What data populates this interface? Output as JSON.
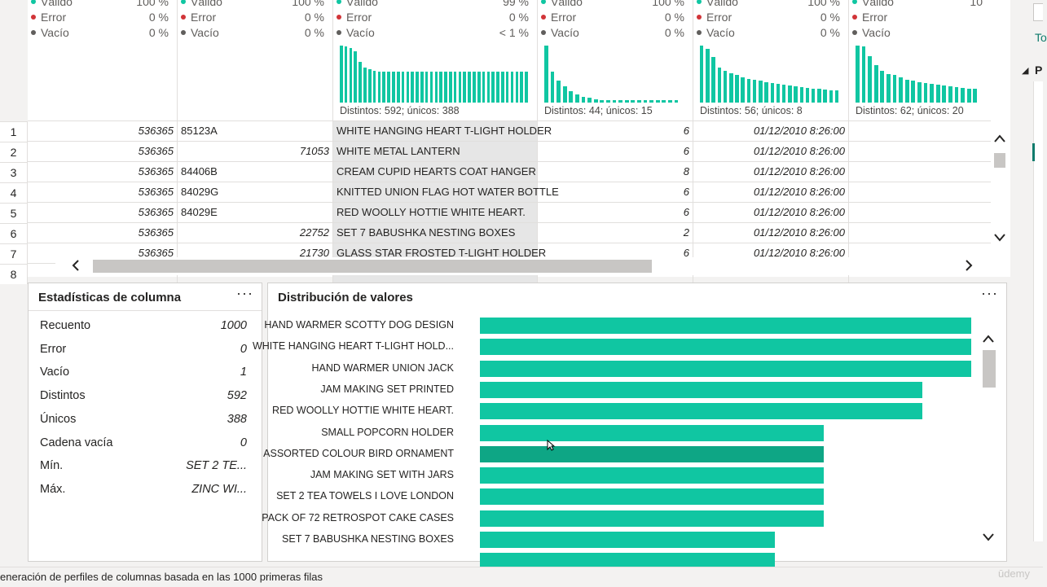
{
  "columns": [
    {
      "valid_label": "Válido",
      "valid_pct": "100 %",
      "error_label": "Error",
      "error_pct": "0 %",
      "empty_label": "Vacío",
      "empty_pct": "0 %",
      "distinct": ""
    },
    {
      "valid_label": "Válido",
      "valid_pct": "100 %",
      "error_label": "Error",
      "error_pct": "0 %",
      "empty_label": "Vacío",
      "empty_pct": "0 %",
      "distinct": ""
    },
    {
      "valid_label": "Válido",
      "valid_pct": "99 %",
      "error_label": "Error",
      "error_pct": "0 %",
      "empty_label": "Vacío",
      "empty_pct": "< 1 %",
      "distinct": "Distintos: 592; únicos: 388"
    },
    {
      "valid_label": "Válido",
      "valid_pct": "100 %",
      "error_label": "Error",
      "error_pct": "0 %",
      "empty_label": "Vacío",
      "empty_pct": "0 %",
      "distinct": "Distintos: 44; únicos: 15"
    },
    {
      "valid_label": "Válido",
      "valid_pct": "100 %",
      "error_label": "Error",
      "error_pct": "0 %",
      "empty_label": "Vacío",
      "empty_pct": "0 %",
      "distinct": "Distintos: 56; únicos: 8"
    },
    {
      "valid_label": "Válido",
      "valid_pct": "10",
      "error_label": "Error",
      "error_pct": "",
      "empty_label": "Vacío",
      "empty_pct": "",
      "distinct": "Distintos: 62; únicos: 20"
    }
  ],
  "histograms": [
    [],
    [],
    [
      1.0,
      0.98,
      0.96,
      0.9,
      0.72,
      0.62,
      0.58,
      0.56,
      0.55,
      0.55,
      0.55,
      0.55,
      0.55,
      0.55,
      0.55,
      0.55,
      0.55,
      0.55,
      0.55,
      0.55,
      0.55,
      0.55,
      0.55,
      0.55,
      0.55,
      0.55,
      0.55,
      0.55,
      0.55,
      0.55,
      0.55,
      0.55,
      0.55,
      0.55,
      0.55,
      0.55,
      0.55,
      0.55,
      0.55,
      0.55
    ],
    [
      1.0,
      0.55,
      0.38,
      0.28,
      0.2,
      0.14,
      0.1,
      0.08,
      0.06,
      0.05,
      0.05,
      0.05,
      0.05,
      0.05,
      0.05,
      0.05,
      0.05,
      0.05,
      0.05,
      0.05,
      0.05,
      0.05
    ],
    [
      1.0,
      0.94,
      0.8,
      0.62,
      0.56,
      0.52,
      0.48,
      0.44,
      0.42,
      0.4,
      0.38,
      0.36,
      0.34,
      0.33,
      0.32,
      0.3,
      0.28,
      0.27,
      0.26,
      0.25,
      0.24,
      0.23,
      0.22,
      0.21
    ],
    [
      1.0,
      0.98,
      0.82,
      0.66,
      0.56,
      0.5,
      0.48,
      0.44,
      0.4,
      0.38,
      0.36,
      0.34,
      0.33,
      0.32,
      0.3,
      0.28,
      0.27,
      0.26,
      0.25,
      0.24
    ]
  ],
  "rows": [
    {
      "n": "1",
      "c1": "536365",
      "c2": "85123A",
      "c2_right": false,
      "c3": "WHITE HANGING HEART T-LIGHT HOLDER",
      "c4": "6",
      "c5": "01/12/2010 8:26:00"
    },
    {
      "n": "2",
      "c1": "536365",
      "c2": "71053",
      "c2_right": true,
      "c3": "WHITE METAL LANTERN",
      "c4": "6",
      "c5": "01/12/2010 8:26:00"
    },
    {
      "n": "3",
      "c1": "536365",
      "c2": "84406B",
      "c2_right": false,
      "c3": "CREAM CUPID HEARTS COAT HANGER",
      "c4": "8",
      "c5": "01/12/2010 8:26:00"
    },
    {
      "n": "4",
      "c1": "536365",
      "c2": "84029G",
      "c2_right": false,
      "c3": "KNITTED UNION FLAG HOT WATER BOTTLE",
      "c4": "6",
      "c5": "01/12/2010 8:26:00"
    },
    {
      "n": "5",
      "c1": "536365",
      "c2": "84029E",
      "c2_right": false,
      "c3": "RED WOOLLY HOTTIE WHITE HEART.",
      "c4": "6",
      "c5": "01/12/2010 8:26:00"
    },
    {
      "n": "6",
      "c1": "536365",
      "c2": "22752",
      "c2_right": true,
      "c3": "SET 7 BABUSHKA NESTING BOXES",
      "c4": "2",
      "c5": "01/12/2010 8:26:00"
    },
    {
      "n": "7",
      "c1": "536365",
      "c2": "21730",
      "c2_right": true,
      "c3": "GLASS STAR FROSTED T-LIGHT HOLDER",
      "c4": "6",
      "c5": "01/12/2010 8:26:00"
    },
    {
      "n": "8",
      "c1": "",
      "c2": "",
      "c2_right": false,
      "c3": "",
      "c4": "",
      "c5": ""
    }
  ],
  "stats": {
    "title": "Estadísticas de columna",
    "more": "···",
    "items": [
      {
        "label": "Recuento",
        "value": "1000"
      },
      {
        "label": "Error",
        "value": "0"
      },
      {
        "label": "Vacío",
        "value": "1"
      },
      {
        "label": "Distintos",
        "value": "592"
      },
      {
        "label": "Únicos",
        "value": "388"
      },
      {
        "label": "Cadena vacía",
        "value": "0"
      },
      {
        "label": "Mín.",
        "value": "SET 2 TE..."
      },
      {
        "label": "Máx.",
        "value": "ZINC WI..."
      }
    ]
  },
  "distribution": {
    "title": "Distribución de valores",
    "more": "···",
    "items": [
      {
        "label": "HAND WARMER SCOTTY DOG DESIGN",
        "value": 1.0
      },
      {
        "label": "WHITE HANGING HEART T-LIGHT HOLD...",
        "value": 1.0
      },
      {
        "label": "HAND WARMER UNION JACK",
        "value": 1.0
      },
      {
        "label": "JAM MAKING SET PRINTED",
        "value": 0.9
      },
      {
        "label": "RED WOOLLY HOTTIE WHITE HEART.",
        "value": 0.9
      },
      {
        "label": "SMALL POPCORN HOLDER",
        "value": 0.7
      },
      {
        "label": "ASSORTED COLOUR BIRD ORNAMENT",
        "value": 0.7,
        "hover": true
      },
      {
        "label": "JAM MAKING SET WITH JARS",
        "value": 0.7
      },
      {
        "label": "SET 2 TEA TOWELS I LOVE LONDON",
        "value": 0.7
      },
      {
        "label": "PACK OF 72 RETROSPOT CAKE CASES",
        "value": 0.7
      },
      {
        "label": "SET 7 BABUSHKA NESTING BOXES",
        "value": 0.6
      },
      {
        "label": "",
        "value": 0.6
      }
    ]
  },
  "status": {
    "text": "eneración de perfiles de columnas basada en las 1000 primeras filas",
    "watermark": "ūdemy"
  },
  "side": {
    "partial_label": "To",
    "partial_header": "P"
  },
  "colors": {
    "accent": "#10c6a2",
    "hover": "#0ea685",
    "error": "#d13438"
  }
}
